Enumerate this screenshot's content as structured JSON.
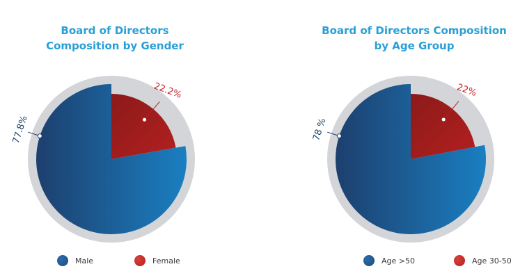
{
  "chart_data": [
    {
      "type": "pie",
      "title_lines": [
        "Board of Directors",
        "Composition by Gender"
      ],
      "slices": [
        {
          "name": "Male",
          "value": 77.8,
          "label": "77.8%",
          "color": "#1d3f6e",
          "gradient_end": "#1a7fc1"
        },
        {
          "name": "Female",
          "value": 22.2,
          "label": "22.2%",
          "color": "#b3201f",
          "gradient_end": "#8c1a1a"
        }
      ],
      "legend": [
        {
          "label": "Male",
          "color": "#1d4d80"
        },
        {
          "label": "Female",
          "color": "#b3201f"
        }
      ]
    },
    {
      "type": "pie",
      "title_lines": [
        "Board of Directors Composition",
        "by Age Group"
      ],
      "slices": [
        {
          "name": "Age >50",
          "value": 78,
          "label": "78 %",
          "color": "#1d3f6e",
          "gradient_end": "#1a7fc1"
        },
        {
          "name": "Age 30-50",
          "value": 22,
          "label": "22%",
          "color": "#b3201f",
          "gradient_end": "#8c1a1a"
        }
      ],
      "legend": [
        {
          "label": "Age >50",
          "color": "#1d4d80"
        },
        {
          "label": "Age 30-50",
          "color": "#b3201f"
        }
      ]
    }
  ]
}
